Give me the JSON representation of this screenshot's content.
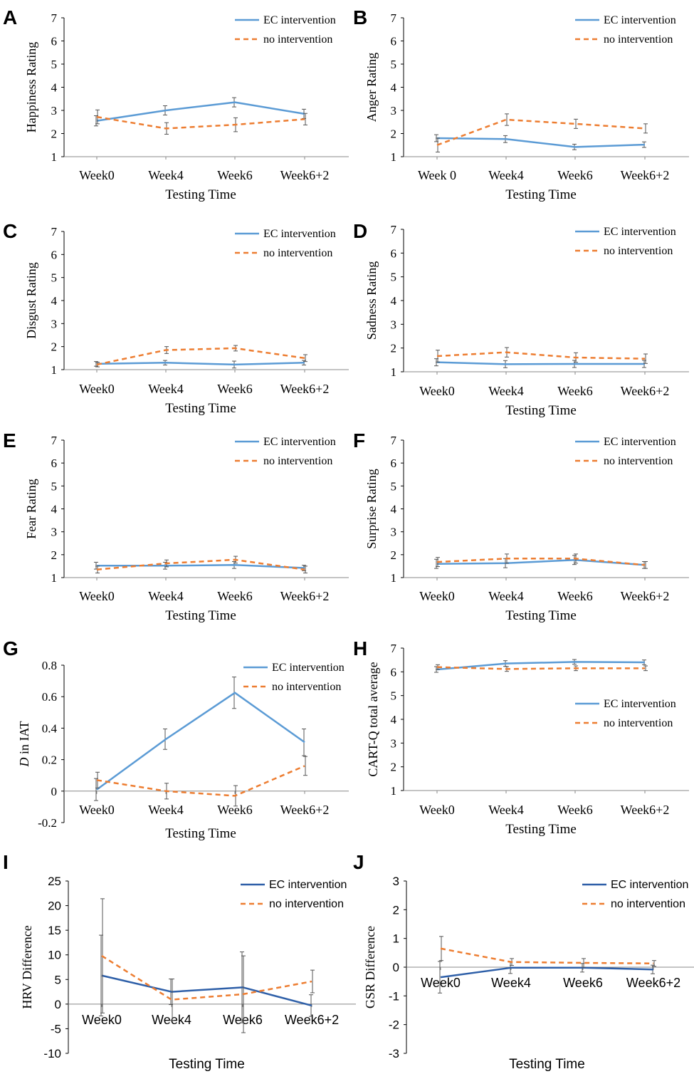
{
  "colors": {
    "ec": "#5b9bd5",
    "ec_dark": "#2e5fa8",
    "none": "#ed7d31",
    "error": "#555555"
  },
  "chart_data": [
    {
      "panel_label": "A",
      "type": "line",
      "ylabel": "Happiness Rating",
      "xlabel": "Testing Time",
      "ylim": [
        1,
        7
      ],
      "yticks": [
        "1",
        "2",
        "3",
        "4",
        "5",
        "6",
        "7"
      ],
      "categories": [
        "Week0",
        "Week4",
        "Week6",
        "Week6+2"
      ],
      "zero_line": false,
      "series": [
        {
          "name": "EC intervention",
          "values": [
            2.55,
            3.0,
            3.35,
            2.85
          ],
          "errors": [
            0.22,
            0.2,
            0.2,
            0.2
          ]
        },
        {
          "name": "no intervention",
          "values": [
            2.72,
            2.22,
            2.38,
            2.62
          ],
          "errors": [
            0.3,
            0.25,
            0.3,
            0.25
          ]
        }
      ]
    },
    {
      "panel_label": "B",
      "type": "line",
      "ylabel": "Anger Rating",
      "xlabel": "Testing Time",
      "ylim": [
        1,
        7
      ],
      "yticks": [
        "1",
        "2",
        "3",
        "4",
        "5",
        "6",
        "7"
      ],
      "categories": [
        "Week 0",
        "Week4",
        "Week6",
        "Week6+2"
      ],
      "zero_line": false,
      "series": [
        {
          "name": "EC intervention",
          "values": [
            1.8,
            1.76,
            1.42,
            1.52
          ],
          "errors": [
            0.15,
            0.15,
            0.12,
            0.12
          ]
        },
        {
          "name": "no intervention",
          "values": [
            1.5,
            2.6,
            2.42,
            2.22
          ],
          "errors": [
            0.3,
            0.25,
            0.2,
            0.2
          ]
        }
      ]
    },
    {
      "panel_label": "C",
      "type": "line",
      "ylabel": "Disgust Rating",
      "xlabel": "Testing Time",
      "ylim": [
        1,
        7
      ],
      "yticks": [
        "1",
        "2",
        "3",
        "4",
        "5",
        "6",
        "7"
      ],
      "categories": [
        "Week0",
        "Week4",
        "Week6",
        "Week6+2"
      ],
      "zero_line": false,
      "series": [
        {
          "name": "EC intervention",
          "values": [
            1.25,
            1.3,
            1.22,
            1.3
          ],
          "errors": [
            0.1,
            0.1,
            0.15,
            0.1
          ]
        },
        {
          "name": "no intervention",
          "values": [
            1.22,
            1.85,
            1.93,
            1.5
          ],
          "errors": [
            0.1,
            0.15,
            0.12,
            0.15
          ]
        }
      ]
    },
    {
      "panel_label": "D",
      "type": "line",
      "ylabel": "Sadness Rating",
      "xlabel": "Testing Time",
      "ylim": [
        1,
        7
      ],
      "yticks": [
        "1",
        "2",
        "3",
        "4",
        "5",
        "6",
        "7"
      ],
      "categories": [
        "Week0",
        "Week4",
        "Week6",
        "Week6+2"
      ],
      "zero_line": false,
      "series": [
        {
          "name": "EC intervention",
          "values": [
            1.4,
            1.32,
            1.33,
            1.33
          ],
          "errors": [
            0.15,
            0.15,
            0.15,
            0.15
          ]
        },
        {
          "name": "no intervention",
          "values": [
            1.66,
            1.82,
            1.6,
            1.55
          ],
          "errors": [
            0.25,
            0.2,
            0.2,
            0.2
          ]
        }
      ]
    },
    {
      "panel_label": "E",
      "type": "line",
      "ylabel": "Fear Rating",
      "xlabel": "Testing Time",
      "ylim": [
        1,
        7
      ],
      "yticks": [
        "1",
        "2",
        "3",
        "4",
        "5",
        "6",
        "7"
      ],
      "categories": [
        "Week0",
        "Week4",
        "Week6",
        "Week6+2"
      ],
      "zero_line": false,
      "series": [
        {
          "name": "EC intervention",
          "values": [
            1.52,
            1.52,
            1.55,
            1.42
          ],
          "errors": [
            0.15,
            0.15,
            0.15,
            0.12
          ]
        },
        {
          "name": "no intervention",
          "values": [
            1.35,
            1.62,
            1.78,
            1.35
          ],
          "errors": [
            0.15,
            0.15,
            0.15,
            0.15
          ]
        }
      ]
    },
    {
      "panel_label": "F",
      "type": "line",
      "ylabel": "Surprise Rating",
      "xlabel": "Testing Time",
      "ylim": [
        1,
        7
      ],
      "yticks": [
        "1",
        "2",
        "3",
        "4",
        "5",
        "6",
        "7"
      ],
      "categories": [
        "Week0",
        "Week4",
        "Week6",
        "Week6+2"
      ],
      "zero_line": false,
      "series": [
        {
          "name": "EC intervention",
          "values": [
            1.6,
            1.63,
            1.77,
            1.55
          ],
          "errors": [
            0.2,
            0.2,
            0.2,
            0.15
          ]
        },
        {
          "name": "no intervention",
          "values": [
            1.68,
            1.83,
            1.83,
            1.55
          ],
          "errors": [
            0.2,
            0.2,
            0.2,
            0.15
          ]
        }
      ]
    },
    {
      "panel_label": "G",
      "type": "line",
      "ylabel": "D in IAT",
      "ylabel_italic_prefix": "D",
      "xlabel": "Testing Time",
      "ylim": [
        -0.2,
        0.8
      ],
      "yticks": [
        "-0.2",
        "0",
        "0.2",
        "0.4",
        "0.6",
        "0.8"
      ],
      "categories": [
        "Week0",
        "Week4",
        "Week6",
        "Week6+2"
      ],
      "zero_line": true,
      "series": [
        {
          "name": "EC intervention",
          "values": [
            0.01,
            0.33,
            0.625,
            0.31
          ],
          "errors": [
            0.07,
            0.065,
            0.1,
            0.085
          ]
        },
        {
          "name": "no intervention",
          "values": [
            0.07,
            0.0,
            -0.03,
            0.16
          ],
          "errors": [
            0.05,
            0.05,
            0.065,
            0.06
          ]
        }
      ]
    },
    {
      "panel_label": "H",
      "type": "line",
      "ylabel": "CART-Q total average",
      "xlabel": "Testing Time",
      "ylim": [
        1,
        7
      ],
      "yticks": [
        "1",
        "2",
        "3",
        "4",
        "5",
        "6",
        "7"
      ],
      "categories": [
        "Week0",
        "Week4",
        "Week6",
        "Week6+2"
      ],
      "zero_line": false,
      "series": [
        {
          "name": "EC intervention",
          "values": [
            6.1,
            6.35,
            6.42,
            6.4
          ],
          "errors": [
            0.12,
            0.12,
            0.1,
            0.1
          ]
        },
        {
          "name": "no intervention",
          "values": [
            6.2,
            6.12,
            6.15,
            6.15
          ],
          "errors": [
            0.1,
            0.1,
            0.1,
            0.1
          ]
        }
      ]
    },
    {
      "panel_label": "I",
      "type": "line",
      "ylabel": "HRV Difference",
      "xlabel": "Testing Time",
      "ylim": [
        -10,
        25
      ],
      "yticks": [
        "-10",
        "-5",
        "0",
        "5",
        "10",
        "15",
        "20",
        "25"
      ],
      "categories": [
        "Week0",
        "Week4",
        "Week6",
        "Week6+2"
      ],
      "zero_line": true,
      "series": [
        {
          "name": "EC intervention",
          "values": [
            5.8,
            2.5,
            3.4,
            -0.3
          ],
          "errors": [
            8.2,
            2.6,
            7.2,
            2.2
          ]
        },
        {
          "name": "no intervention",
          "values": [
            9.8,
            0.9,
            2.0,
            4.6
          ],
          "errors": [
            11.6,
            4.2,
            7.8,
            2.3
          ]
        }
      ]
    },
    {
      "panel_label": "J",
      "type": "line",
      "ylabel": "GSR Difference",
      "xlabel": "Testing Time",
      "ylim": [
        -3,
        3
      ],
      "yticks": [
        "-3",
        "-2",
        "-1",
        "0",
        "1",
        "2",
        "3"
      ],
      "categories": [
        "Week0",
        "Week4",
        "Week6",
        "Week6+2"
      ],
      "zero_line": true,
      "series": [
        {
          "name": "EC intervention",
          "values": [
            -0.35,
            -0.02,
            -0.02,
            -0.08
          ],
          "errors": [
            0.55,
            0.2,
            0.15,
            0.15
          ]
        },
        {
          "name": "no intervention",
          "values": [
            0.65,
            0.18,
            0.15,
            0.13
          ],
          "errors": [
            0.42,
            0.12,
            0.15,
            0.1
          ]
        }
      ]
    }
  ]
}
